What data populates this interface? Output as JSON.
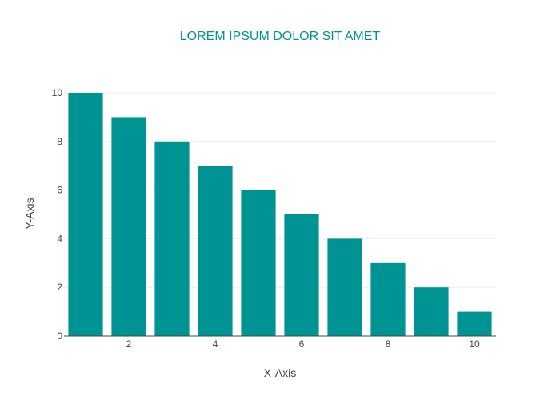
{
  "chart_data": {
    "type": "bar",
    "title": "LOREM IPSUM DOLOR SIT AMET",
    "xlabel": "X-Axis",
    "ylabel": "Y-Axis",
    "x": [
      1,
      2,
      3,
      4,
      5,
      6,
      7,
      8,
      9,
      10
    ],
    "values": [
      10,
      9,
      8,
      7,
      6,
      5,
      4,
      3,
      2,
      1
    ],
    "xlim": [
      0.5,
      10.5
    ],
    "ylim": [
      0,
      10
    ],
    "x_ticks": [
      2,
      4,
      6,
      8,
      10
    ],
    "y_ticks": [
      0,
      2,
      4,
      6,
      8,
      10
    ],
    "grid": "horizontal",
    "legend": "none",
    "colors": {
      "bar": "#009393",
      "title": "#009393",
      "axis_line": "#444444",
      "grid": "#eeeeee"
    }
  }
}
